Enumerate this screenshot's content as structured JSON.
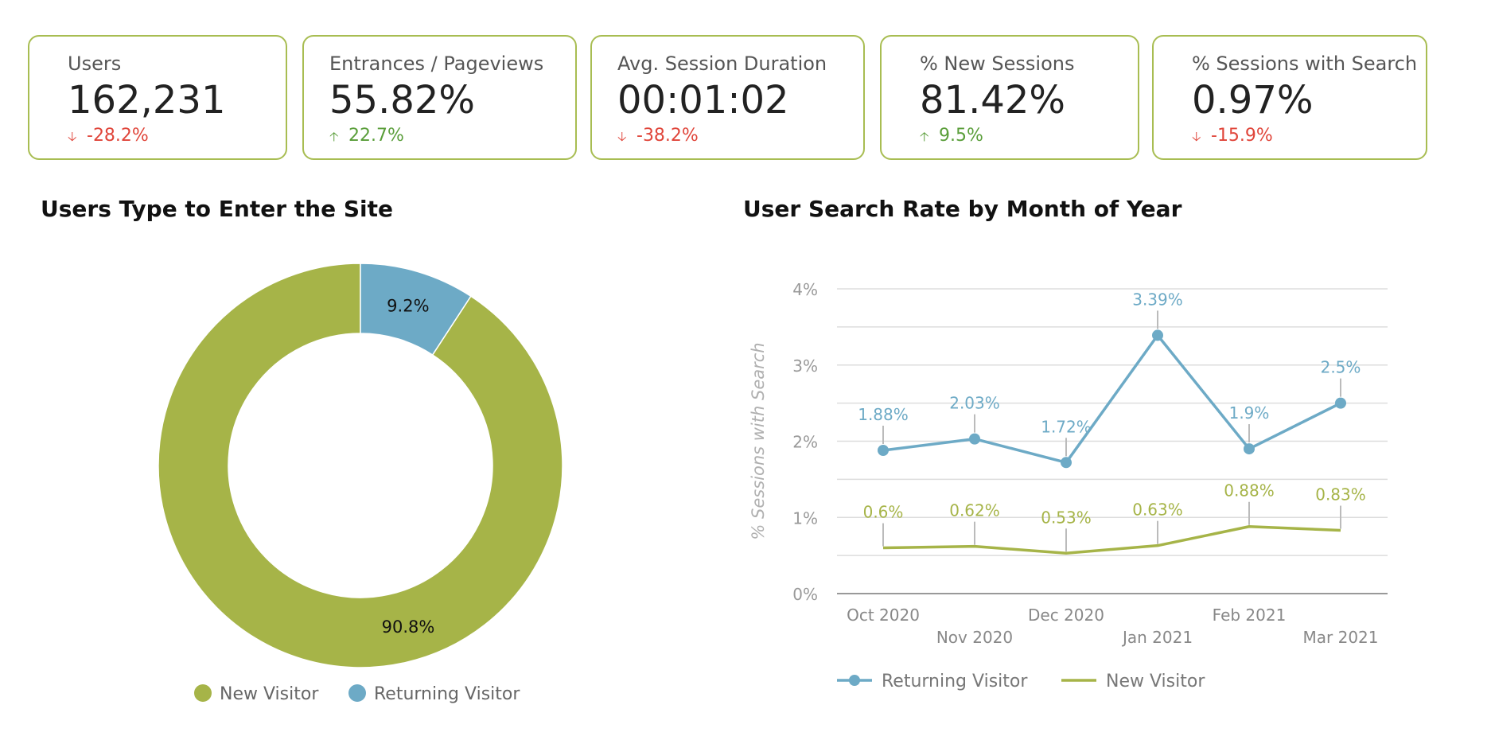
{
  "kpis": [
    {
      "label": "Users",
      "value": "162,231",
      "delta": "-28.2%",
      "direction": "down"
    },
    {
      "label": "Entrances / Pageviews",
      "value": "55.82%",
      "delta": "22.7%",
      "direction": "up"
    },
    {
      "label": "Avg. Session Duration",
      "value": "00:01:02",
      "delta": "-38.2%",
      "direction": "down"
    },
    {
      "label": "% New Sessions",
      "value": "81.42%",
      "delta": "9.5%",
      "direction": "up"
    },
    {
      "label": "% Sessions with Search",
      "value": "0.97%",
      "delta": "-15.9%",
      "direction": "down"
    }
  ],
  "icons": {
    "up": "arrow-up-icon",
    "down": "arrow-down-icon",
    "legend_marker": "circle-icon"
  },
  "colors": {
    "border": "#a8bd52",
    "new_visitor": "#a6b448",
    "returning_visitor": "#6daac6",
    "delta_up": "#5a9e3a",
    "delta_down": "#e0453a"
  },
  "chart_data": [
    {
      "type": "pie",
      "title": "Users Type to Enter the Site",
      "donut": true,
      "categories": [
        "New Visitor",
        "Returning Visitor"
      ],
      "values": [
        90.8,
        9.2
      ],
      "labels": [
        "90.8%",
        "9.2%"
      ],
      "legend": [
        "New Visitor",
        "Returning Visitor"
      ],
      "legend_position": "bottom"
    },
    {
      "type": "line",
      "title": "User Search Rate by Month of Year",
      "xlabel": "",
      "ylabel": "% Sessions with Search",
      "x": [
        "Oct 2020",
        "Nov 2020",
        "Dec 2020",
        "Jan 2021",
        "Feb 2021",
        "Mar 2021"
      ],
      "y_ticks": [
        "0%",
        "1%",
        "2%",
        "3%",
        "4%"
      ],
      "ylim": [
        0,
        4
      ],
      "grid": true,
      "legend_position": "bottom",
      "series": [
        {
          "name": "Returning Visitor",
          "values": [
            1.88,
            2.03,
            1.72,
            3.39,
            1.9,
            2.5
          ],
          "labels": [
            "1.88%",
            "2.03%",
            "1.72%",
            "3.39%",
            "1.9%",
            "2.5%"
          ],
          "markers": true
        },
        {
          "name": "New Visitor",
          "values": [
            0.6,
            0.62,
            0.53,
            0.63,
            0.88,
            0.83
          ],
          "labels": [
            "0.6%",
            "0.62%",
            "0.53%",
            "0.63%",
            "0.88%",
            "0.83%"
          ],
          "markers": false
        }
      ]
    }
  ]
}
